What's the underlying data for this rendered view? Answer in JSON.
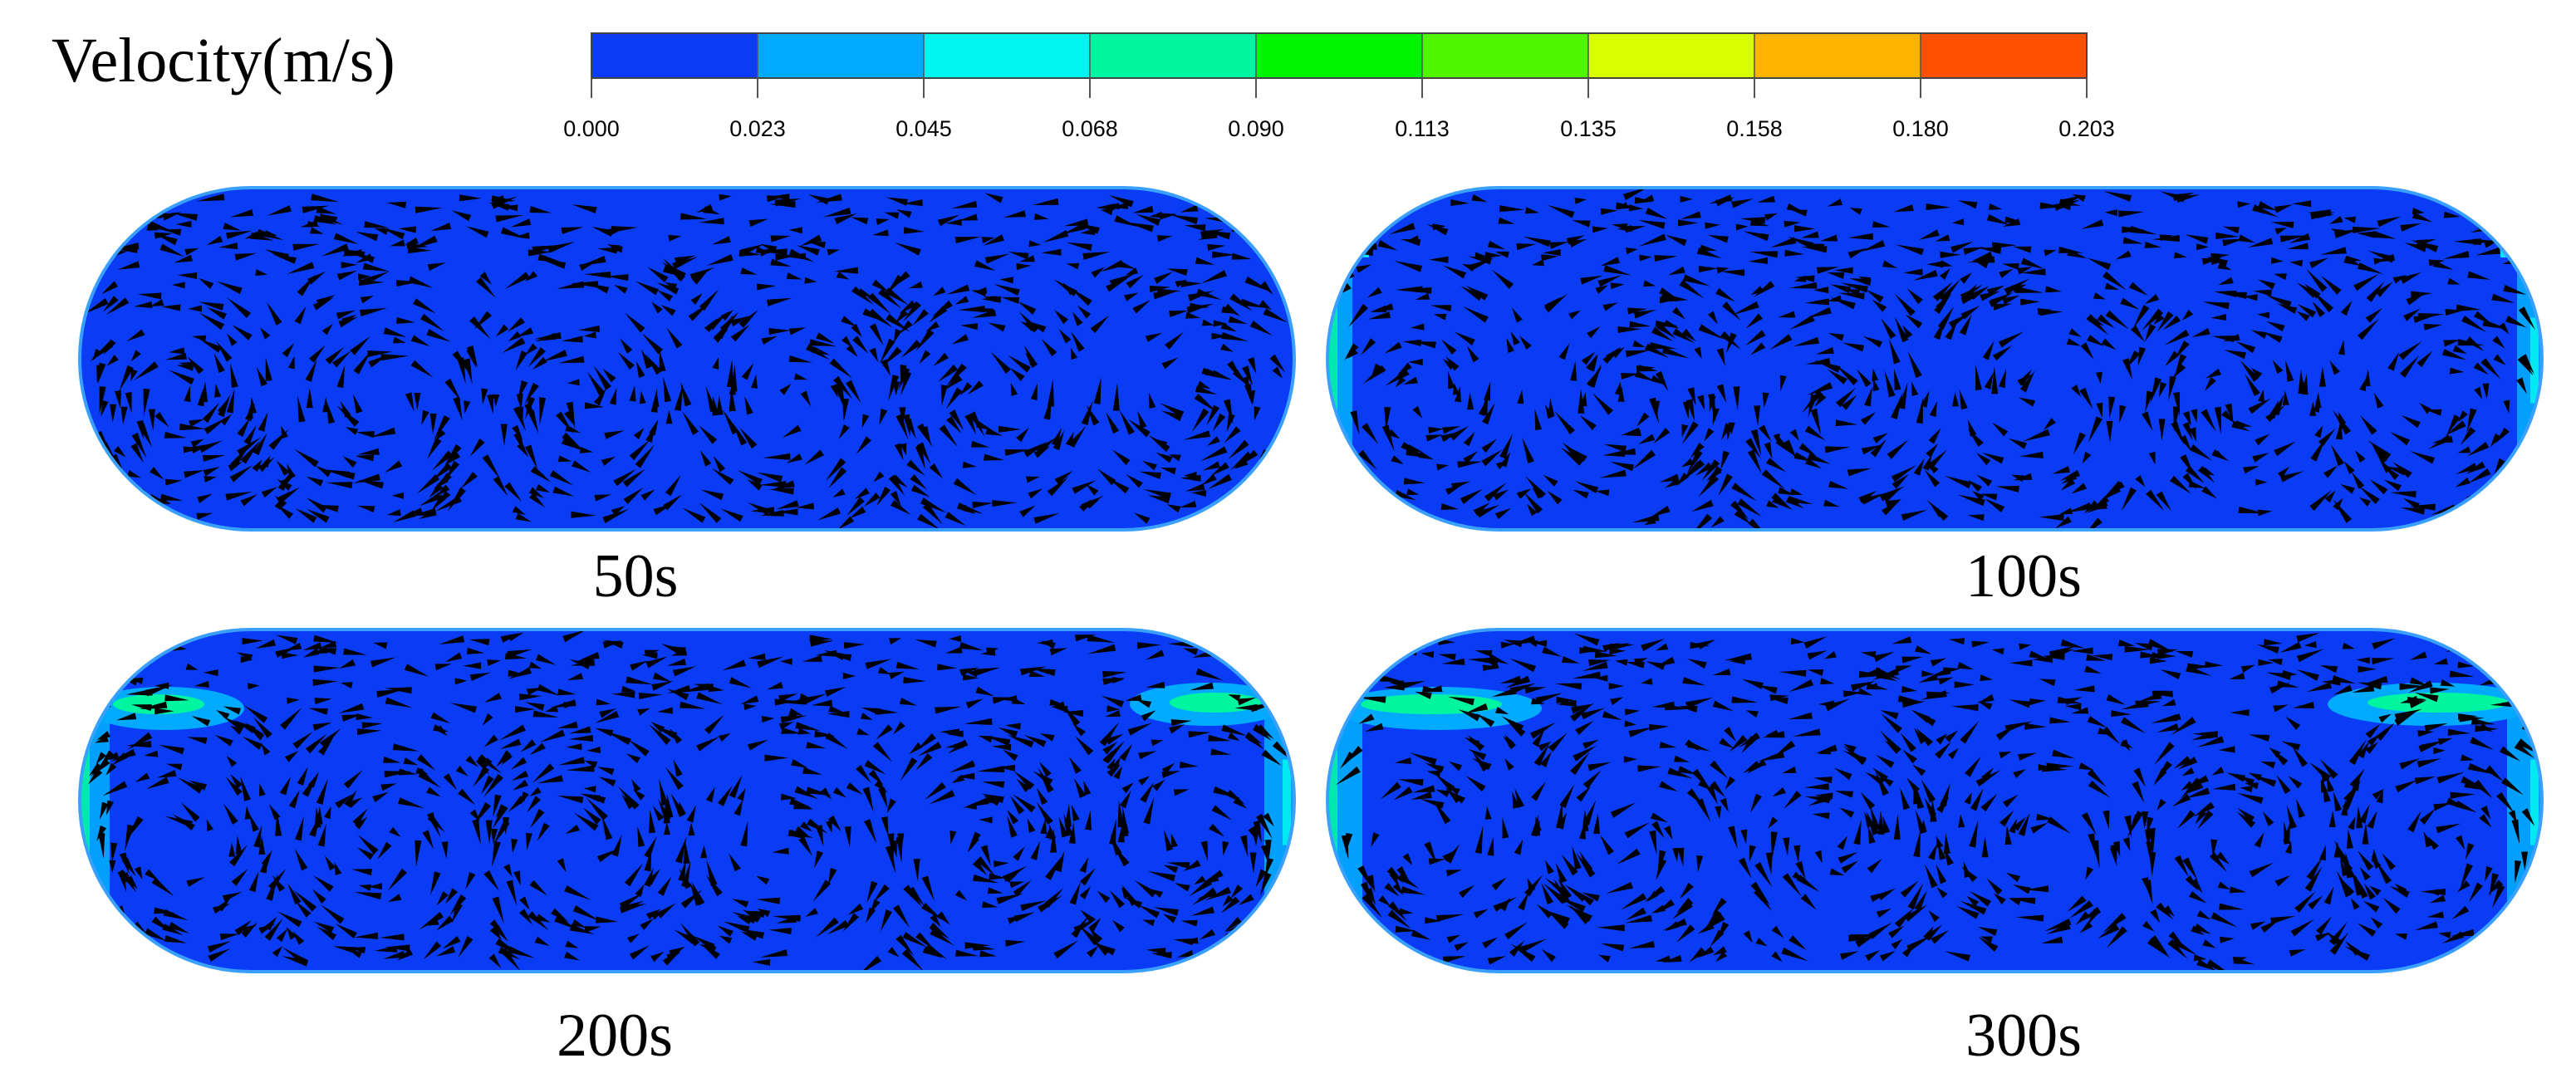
{
  "legend": {
    "title": "Velocity(m/s)",
    "ticks": [
      "0.000",
      "0.023",
      "0.045",
      "0.068",
      "0.090",
      "0.113",
      "0.135",
      "0.158",
      "0.180",
      "0.203"
    ],
    "colors": [
      "#0a3cf5",
      "#00aaff",
      "#00f5f0",
      "#00f5a0",
      "#00f500",
      "#50f500",
      "#d8ff00",
      "#ffb400",
      "#ff5000"
    ]
  },
  "panels": [
    {
      "caption": "50s",
      "edge_level": 0
    },
    {
      "caption": "100s",
      "edge_level": 1
    },
    {
      "caption": "200s",
      "edge_level": 2
    },
    {
      "caption": "300s",
      "edge_level": 3
    }
  ],
  "colors": {
    "background_fluid": "#0a3cf5",
    "outline": "#3aa0ff",
    "arrow": "#000000"
  }
}
